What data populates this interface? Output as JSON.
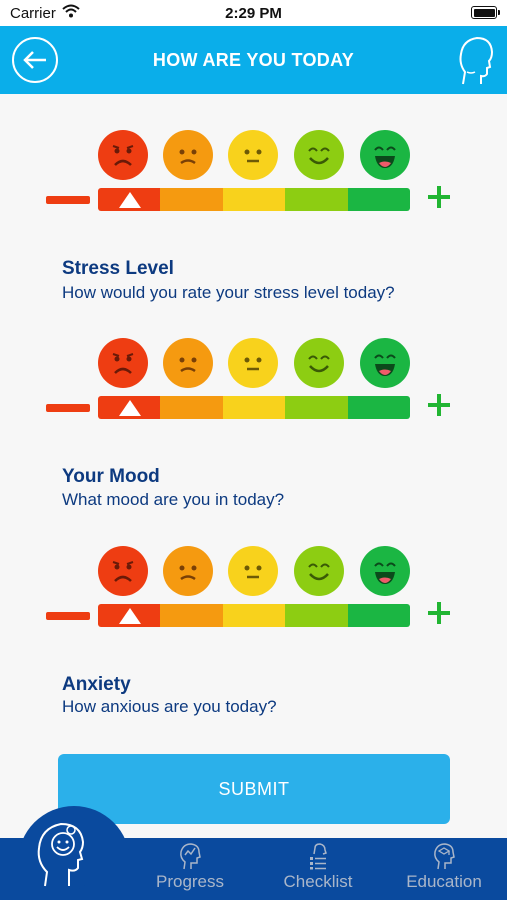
{
  "status_bar": {
    "carrier": "Carrier",
    "time": "2:29 PM"
  },
  "header": {
    "title": "HOW ARE YOU TODAY",
    "back_icon": "arrow-left-circle-icon",
    "profile_icon": "person-silhouette-icon"
  },
  "scale": {
    "faces": [
      "very-sad-face-icon",
      "sad-face-icon",
      "neutral-face-icon",
      "smile-face-icon",
      "big-smile-face-icon"
    ],
    "face_colors": [
      "#ee3d12",
      "#f59a10",
      "#f8d21c",
      "#8dcd12",
      "#1bb643"
    ],
    "segment_colors": [
      "#ee3d12",
      "#f59a10",
      "#f8d21c",
      "#8dcd12",
      "#1bb643"
    ],
    "minus_icon": "minus-icon",
    "plus_icon": "plus-icon"
  },
  "ratings": [
    {
      "title": "Stress Level",
      "question": "How would you rate your stress level today?",
      "selected_level": 1
    },
    {
      "title": "Your Mood",
      "question": "What mood are you in today?",
      "selected_level": 1
    },
    {
      "title": "Anxiety",
      "question": "How anxious are you today?",
      "selected_level": 1
    }
  ],
  "submit_label": "SUBMIT",
  "tabs": [
    {
      "label": "",
      "icon": "head-profile-icon"
    },
    {
      "label": "Progress",
      "icon": "progress-icon"
    },
    {
      "label": "Checklist",
      "icon": "checklist-icon"
    },
    {
      "label": "Education",
      "icon": "education-icon"
    }
  ]
}
